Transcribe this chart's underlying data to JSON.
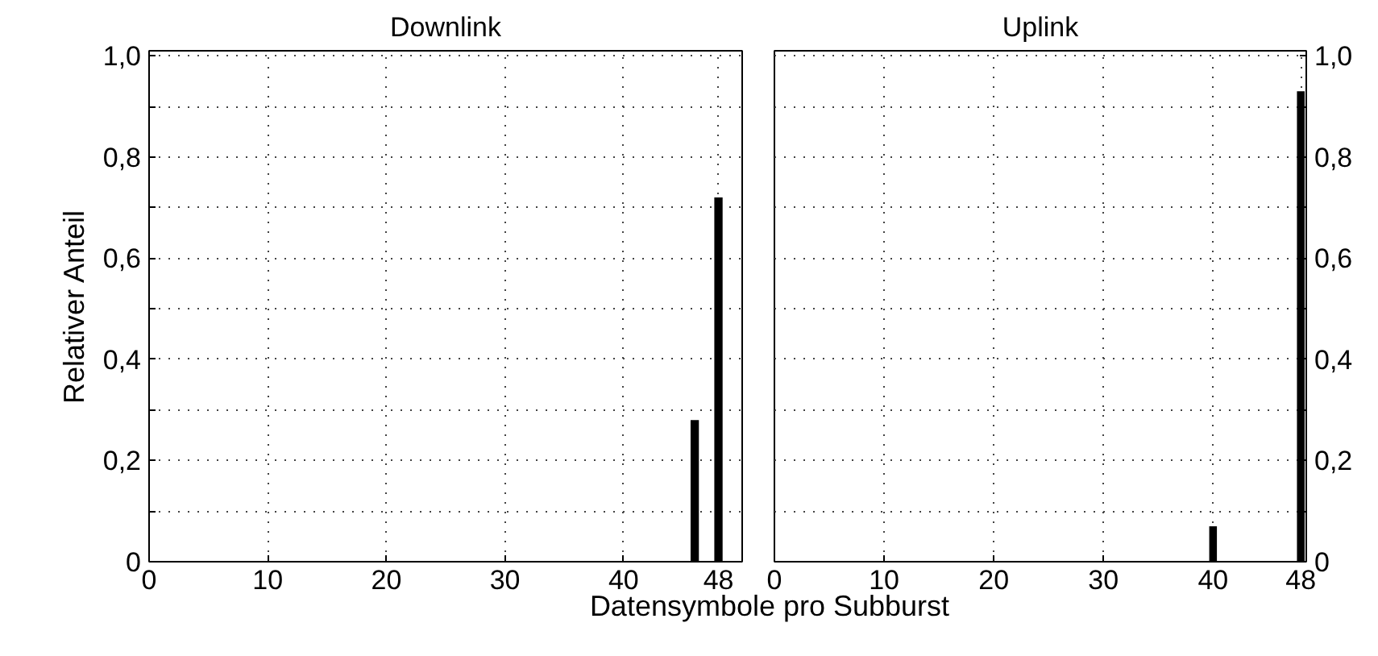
{
  "chart_data": [
    {
      "type": "bar",
      "title": "Downlink",
      "xlabel": "Datensymbole pro Subburst",
      "ylabel": "Relativer Anteil",
      "x": [
        46,
        48
      ],
      "values": [
        0.28,
        0.72
      ],
      "color": "#000000",
      "xlim": [
        0,
        50
      ],
      "ylim": [
        0,
        1.01
      ],
      "xticks": [
        0,
        10,
        20,
        30,
        40,
        48
      ],
      "yticks": [
        0,
        {
          "value": 0.1,
          "label": null
        },
        {
          "value": 0.2,
          "label": "0,2"
        },
        {
          "value": 0.3,
          "label": null
        },
        {
          "value": 0.4,
          "label": "0,4"
        },
        {
          "value": 0.5,
          "label": null
        },
        {
          "value": 0.6,
          "label": "0,6"
        },
        {
          "value": 0.7,
          "label": null
        },
        {
          "value": 0.8,
          "label": "0,8"
        },
        {
          "value": 0.9,
          "label": null
        },
        {
          "value": 1.0,
          "label": "1,0"
        }
      ],
      "grid": true
    },
    {
      "type": "bar",
      "title": "Uplink",
      "series": [
        {
          "x": [
            40,
            48
          ],
          "values": [
            0.07,
            0.93
          ],
          "color": "#000000",
          "axis": "y2"
        }
      ],
      "xlim": [
        0,
        48.5
      ],
      "y2lim": [
        0,
        1.01
      ],
      "xticks": [
        0,
        10,
        20,
        30,
        40,
        48
      ],
      "y2ticks": [
        0,
        {
          "value": 0.1,
          "label": null
        },
        {
          "value": 0.2,
          "label": "0,2"
        },
        {
          "value": 0.3,
          "label": null
        },
        {
          "value": 0.4,
          "label": "0,4"
        },
        {
          "value": 0.5,
          "label": null
        },
        {
          "value": 0.6,
          "label": "0,6"
        },
        {
          "value": 0.7,
          "label": null
        },
        {
          "value": 0.8,
          "label": "0,8"
        },
        {
          "value": 0.9,
          "label": null
        },
        {
          "value": 1.0,
          "label": "1,0"
        }
      ],
      "grid": true
    }
  ]
}
